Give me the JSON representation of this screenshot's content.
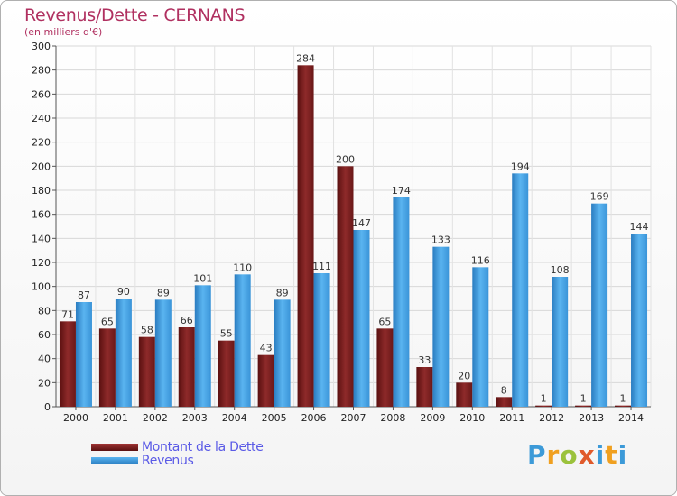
{
  "chart_data": {
    "type": "bar",
    "title": "Revenus/Dette - CERNANS",
    "subtitle": "(en milliers d'€)",
    "categories": [
      "2000",
      "2001",
      "2002",
      "2003",
      "2004",
      "2005",
      "2006",
      "2007",
      "2008",
      "2009",
      "2010",
      "2011",
      "2012",
      "2013",
      "2014"
    ],
    "series": [
      {
        "name": "Montant de la Dette",
        "color": "#7a1f1f",
        "values": [
          71,
          65,
          58,
          66,
          55,
          43,
          284,
          200,
          65,
          33,
          20,
          8,
          1,
          1,
          1
        ]
      },
      {
        "name": "Revenus",
        "color": "#3a9ae0",
        "values": [
          87,
          90,
          89,
          101,
          110,
          89,
          111,
          147,
          174,
          133,
          116,
          194,
          108,
          169,
          144
        ]
      }
    ],
    "ylim": [
      0,
      300
    ],
    "yticks": [
      0,
      20,
      40,
      60,
      80,
      100,
      120,
      140,
      160,
      180,
      200,
      220,
      240,
      260,
      280,
      300
    ],
    "grid": true,
    "legend": "bottom-left"
  },
  "logo": {
    "text": "Proxiti",
    "letters": [
      "P",
      "r",
      "o",
      "x",
      "i",
      "t",
      "i"
    ]
  }
}
